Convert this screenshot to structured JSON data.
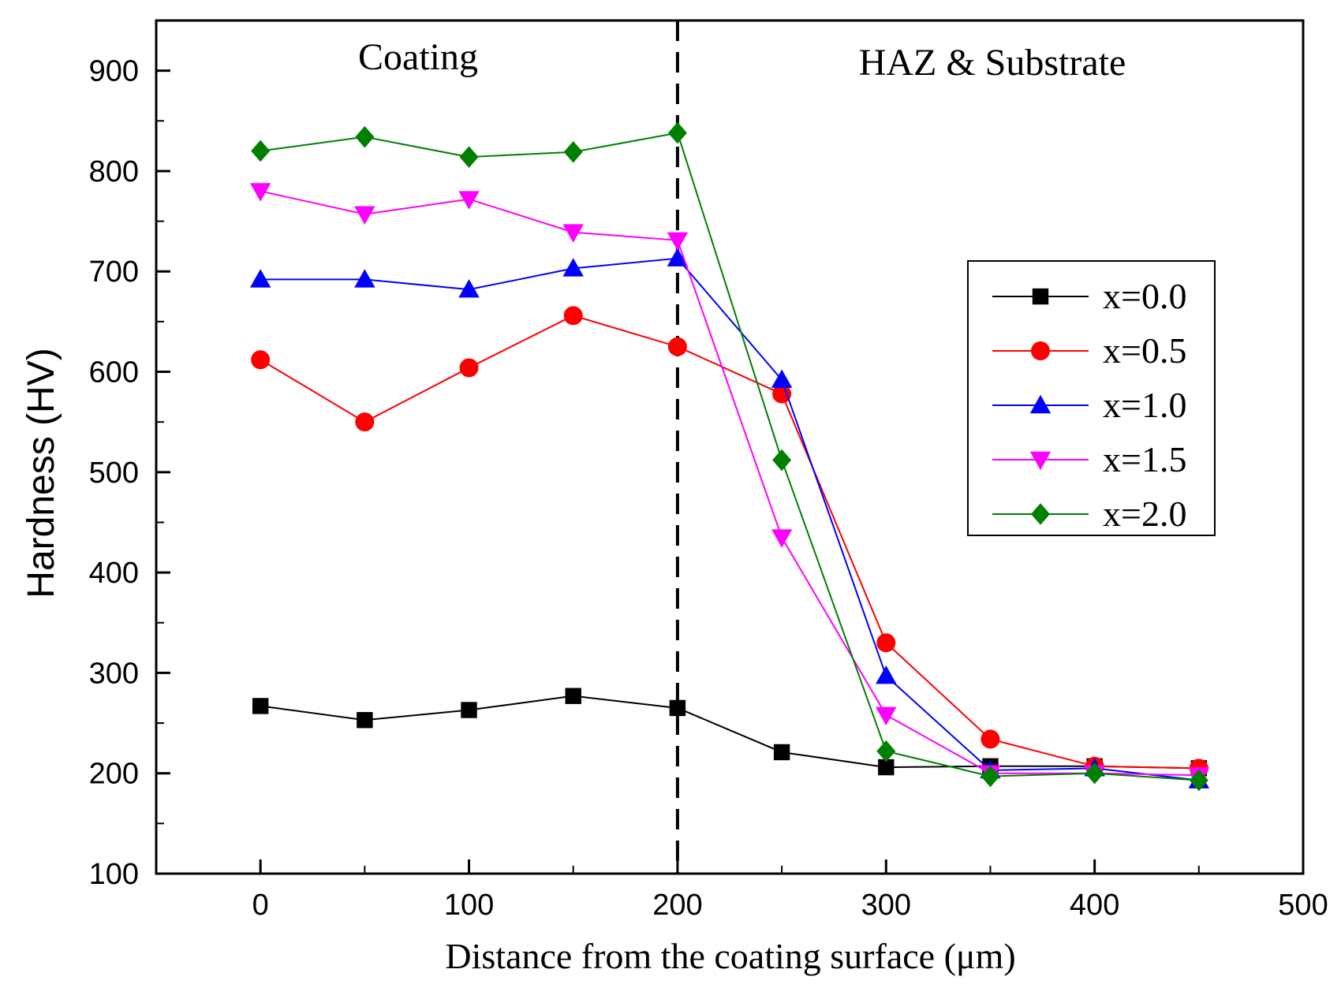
{
  "chart_data": {
    "type": "line",
    "xlabel": "Distance from the coating surface (μm)",
    "ylabel": "Hardness (HV)",
    "xlim": [
      -50,
      500
    ],
    "ylim": [
      100,
      950
    ],
    "xticks": [
      0,
      100,
      200,
      300,
      400,
      500
    ],
    "yticks": [
      100,
      200,
      300,
      400,
      500,
      600,
      700,
      800,
      900
    ],
    "grid": false,
    "legend_position": "right",
    "divider": {
      "x": 200,
      "style": "dashed"
    },
    "annotations": [
      {
        "text": "Coating",
        "region": "left"
      },
      {
        "text": "HAZ & Substrate",
        "region": "right"
      }
    ],
    "x": [
      0,
      50,
      100,
      150,
      200,
      250,
      300,
      350,
      400,
      450
    ],
    "series": [
      {
        "name": "x=0.0",
        "color": "#000000",
        "marker": "square",
        "values": [
          267,
          253,
          263,
          277,
          265,
          221,
          206,
          207,
          207,
          205
        ]
      },
      {
        "name": "x=0.5",
        "color": "#ff0000",
        "marker": "circle",
        "values": [
          612,
          550,
          604,
          656,
          625,
          578,
          330,
          234,
          207,
          205
        ]
      },
      {
        "name": "x=1.0",
        "color": "#0000ff",
        "marker": "triangle-up",
        "values": [
          692,
          692,
          682,
          703,
          713,
          592,
          297,
          203,
          205,
          193
        ]
      },
      {
        "name": "x=1.5",
        "color": "#ff00ff",
        "marker": "triangle-down",
        "values": [
          780,
          757,
          772,
          739,
          731,
          435,
          258,
          200,
          200,
          198
        ]
      },
      {
        "name": "x=2.0",
        "color": "#008000",
        "marker": "diamond",
        "values": [
          820,
          834,
          814,
          819,
          838,
          512,
          222,
          197,
          200,
          193
        ]
      }
    ]
  }
}
